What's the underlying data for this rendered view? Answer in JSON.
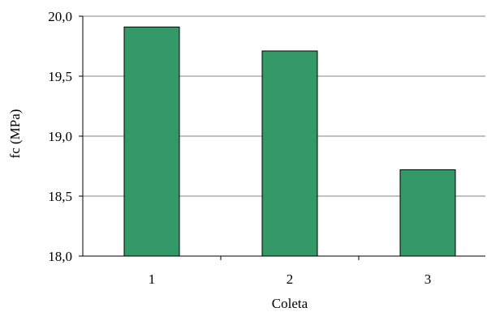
{
  "chart_data": {
    "type": "bar",
    "categories": [
      "1",
      "2",
      "3"
    ],
    "values": [
      19.91,
      19.71,
      18.72
    ],
    "xlabel": "Coleta",
    "ylabel": "fc (MPa)",
    "ylim": [
      18.0,
      20.0
    ],
    "yticks": [
      "18,0",
      "18,5",
      "19,0",
      "19,5",
      "20,0"
    ],
    "ytick_values": [
      18.0,
      18.5,
      19.0,
      19.5,
      20.0
    ],
    "grid": "horizontal",
    "bar_color": "#339966",
    "bar_edge_color": "#000000",
    "grid_color": "#808080"
  }
}
